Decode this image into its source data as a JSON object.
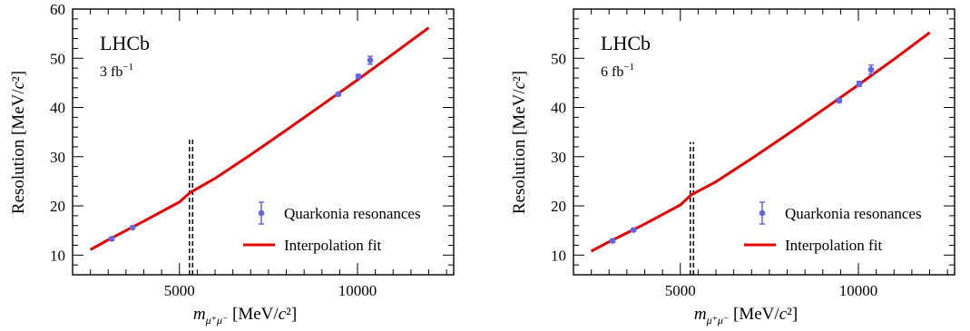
{
  "chart_data": [
    {
      "type": "scatter",
      "experiment": "LHCb",
      "luminosity": "3 fb",
      "luminosity_sup": "−1",
      "xlabel": {
        "symbol": "m",
        "sub": "μ⁺μ⁻",
        "unit": " [MeV/c²]"
      },
      "ylabel": "Resolution [MeV/c²]",
      "xlim": [
        2000,
        12700
      ],
      "ylim": [
        6,
        60
      ],
      "xticks": [
        5000,
        10000
      ],
      "yticks": [
        10,
        20,
        30,
        40,
        50,
        60
      ],
      "grid": false,
      "legend_position": "bottom-right",
      "series": [
        {
          "name": "Quarkonia resonances",
          "kind": "points",
          "color": "#6464e6",
          "x": [
            3097,
            3686,
            9460,
            10023,
            10355
          ],
          "y": [
            13.3,
            15.6,
            42.7,
            46.3,
            49.6
          ],
          "yerr": [
            0.3,
            0.3,
            0.3,
            0.4,
            0.8
          ]
        },
        {
          "name": "Interpolation fit",
          "kind": "line",
          "color": "#e60000",
          "x": [
            2500,
            3000,
            3500,
            4000,
            5000,
            5300,
            6000,
            7000,
            8000,
            9000,
            10000,
            11000,
            12000
          ],
          "y": [
            11.1,
            13.1,
            15.0,
            16.9,
            20.8,
            22.7,
            25.6,
            30.4,
            35.4,
            40.5,
            45.6,
            50.9,
            56.2
          ]
        }
      ],
      "vlines": {
        "x": [
          5280,
          5370
        ],
        "y_top": 34,
        "style": "dashed"
      }
    },
    {
      "type": "scatter",
      "experiment": "LHCb",
      "luminosity": "6 fb",
      "luminosity_sup": "−1",
      "xlabel": {
        "symbol": "m",
        "sub": "μ⁺μ⁻",
        "unit": " [MeV/c²]"
      },
      "ylabel": "Resolution [MeV/c²]",
      "xlim": [
        2000,
        12700
      ],
      "ylim": [
        6,
        60
      ],
      "xticks": [
        5000,
        10000
      ],
      "yticks": [
        10,
        20,
        30,
        40,
        50
      ],
      "grid": false,
      "legend_position": "bottom-right",
      "series": [
        {
          "name": "Quarkonia resonances",
          "kind": "points",
          "color": "#6464e6",
          "x": [
            3097,
            3686,
            9460,
            10023,
            10355
          ],
          "y": [
            12.9,
            15.1,
            41.4,
            44.8,
            47.7
          ],
          "yerr": [
            0.3,
            0.3,
            0.4,
            0.5,
            0.9
          ]
        },
        {
          "name": "Interpolation fit",
          "kind": "line",
          "color": "#e60000",
          "x": [
            2500,
            3000,
            3500,
            4000,
            5000,
            5300,
            6000,
            7000,
            8000,
            9000,
            10000,
            11000,
            12000
          ],
          "y": [
            10.8,
            12.7,
            14.5,
            16.3,
            20.2,
            22.2,
            24.9,
            29.6,
            34.5,
            39.5,
            44.6,
            49.8,
            55.2
          ]
        }
      ],
      "vlines": {
        "x": [
          5280,
          5370
        ],
        "y_top": 33,
        "style": "dashed"
      }
    }
  ]
}
